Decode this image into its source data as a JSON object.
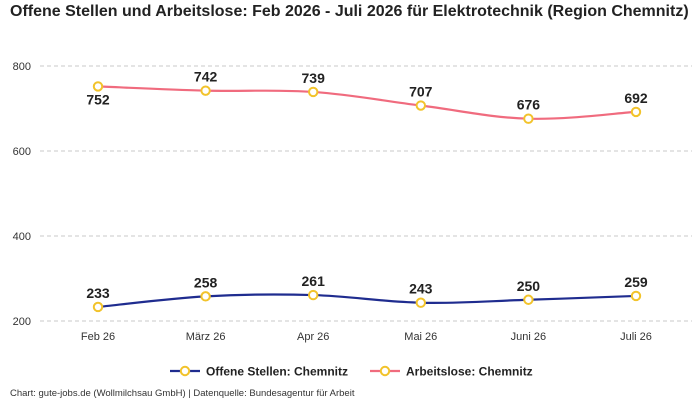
{
  "chart_data": {
    "type": "line",
    "title": "Offene Stellen und Arbeitslose: Feb 2026 - Juli 2026 für Elektrotechnik (Region Chemnitz)",
    "categories": [
      "Feb 26",
      "März 26",
      "Apr 26",
      "Mai 26",
      "Juni 26",
      "Juli 26"
    ],
    "series": [
      {
        "name": "Offene Stellen: Chemnitz",
        "values": [
          233,
          258,
          261,
          243,
          250,
          259
        ],
        "color": "#1f2c8f"
      },
      {
        "name": "Arbeitslose: Chemnitz",
        "values": [
          752,
          742,
          739,
          707,
          676,
          692
        ],
        "color": "#f06b7e"
      }
    ],
    "marker_color": "#f2c32b",
    "ylim": [
      200,
      800
    ],
    "yticks": [
      "200",
      "400",
      "600",
      "800"
    ],
    "grid": true,
    "legend_position": "bottom"
  },
  "footer": "Chart: gute-jobs.de (Wollmilchsau GmbH) | Datenquelle: Bundesagentur für Arbeit"
}
